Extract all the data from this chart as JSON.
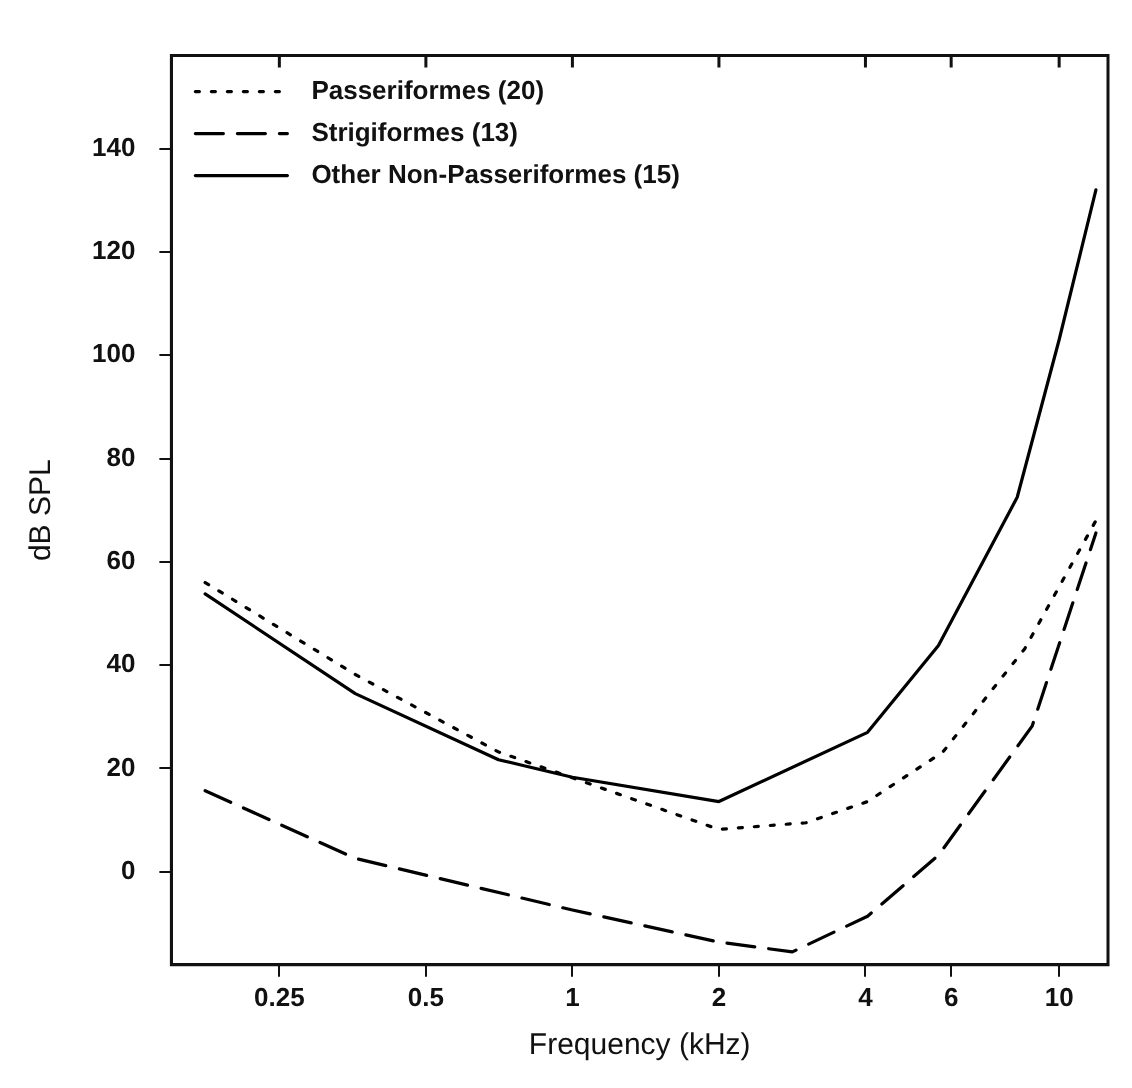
{
  "chart_data": {
    "type": "line",
    "xlabel": "Frequency (kHz)",
    "ylabel": "dB SPL",
    "log": "x",
    "xlim": [
      0.15,
      12.6
    ],
    "xticks": [
      0.25,
      0.5,
      1,
      2,
      4,
      6,
      10
    ],
    "ylim": [
      -18,
      158
    ],
    "yticks": [
      0,
      20,
      40,
      60,
      80,
      100,
      120,
      140
    ],
    "grid": false,
    "legend": "top left",
    "marker": "none",
    "series": [
      {
        "name": "Passeriformes (20)",
        "color": "#000000",
        "line_style": "dotted",
        "x": [
          0.176,
          0.358,
          0.705,
          1.0,
          2.0,
          3.02,
          4.04,
          5.77,
          8.5,
          11.9
        ],
        "values": [
          56,
          38.2,
          23.2,
          18.2,
          8.2,
          9.5,
          13.6,
          23.2,
          43.2,
          68
        ]
      },
      {
        "name": "Strigiformes (13)",
        "color": "#000000",
        "line_style": "dashed",
        "x": [
          0.176,
          0.358,
          1.0,
          2.0,
          2.83,
          4.04,
          5.65,
          8.8,
          11.9
        ],
        "values": [
          15.7,
          2.6,
          -7.4,
          -13.6,
          -15.5,
          -8.6,
          3.2,
          28.2,
          65.6
        ]
      },
      {
        "name": "Other Non-Passeriformes (15)",
        "color": "#000000",
        "line_style": "solid",
        "x": [
          0.176,
          0.358,
          0.705,
          1.0,
          2.0,
          4.04,
          5.65,
          8.2,
          10.0,
          11.9
        ],
        "values": [
          53.8,
          34.5,
          21.7,
          18.3,
          13.6,
          27,
          43.8,
          72.5,
          103,
          132
        ]
      }
    ]
  }
}
